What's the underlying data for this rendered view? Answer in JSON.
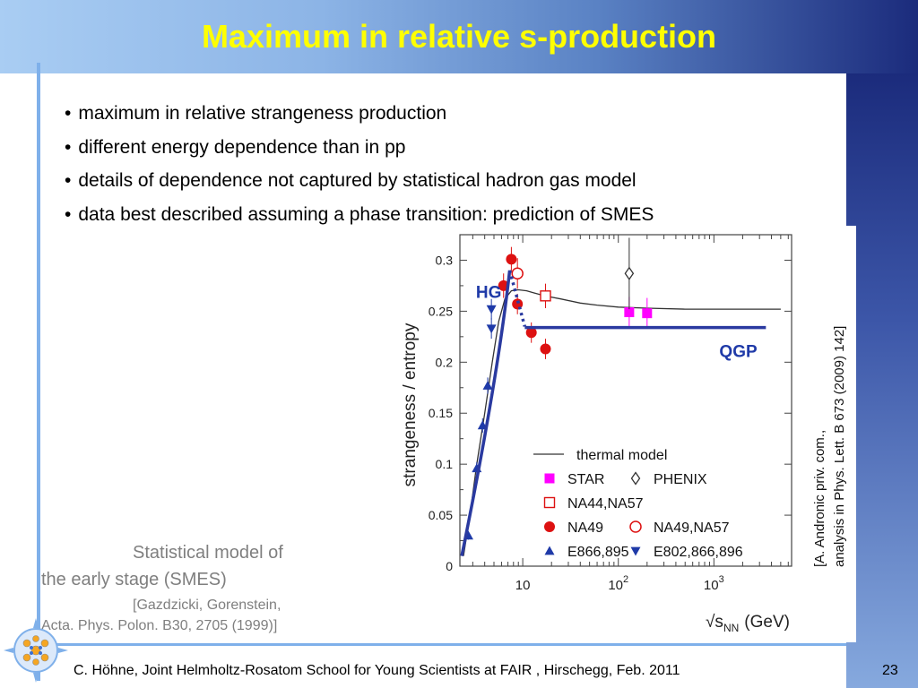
{
  "slide": {
    "title": "Maximum in relative s-production",
    "bullets": [
      "maximum in relative strangeness production",
      "different energy dependence than in pp",
      "details of dependence not captured by statistical hadron gas model",
      "data best described assuming a phase transition: prediction of SMES"
    ],
    "smes_label_line1": "Statistical model of",
    "smes_label_line2": "the early stage (SMES)",
    "smes_ref_line1": "[Gazdzicki, Gorenstein,",
    "smes_ref_line2": "Acta. Phys. Polon. B30, 2705 (1999)]",
    "source_line1": "[A. Andronic priv. com.,",
    "source_line2": "analysis in Phys. Lett. B 673 (2009) 142]",
    "footer": "C. Höhne,   Joint Helmholtz-Rosatom School for Young Scientists at FAIR , Hirschegg, Feb. 2011",
    "page_number": "23"
  },
  "colors": {
    "title": "#ffff00",
    "star": "#ff00ff",
    "na49": "#dd1111",
    "e866": "#1f3aa8",
    "smes_line": "#2a3aa0",
    "annotation_text": "#1f3aa8",
    "thermal": "#333333"
  },
  "chart_data": {
    "type": "scatter",
    "xlabel": "√s",
    "xlabel_sub": "NN",
    "xlabel_unit": "(GeV)",
    "ylabel": "strangeness / entropy",
    "xscale": "log",
    "xlim": [
      2.2,
      6500
    ],
    "ylim": [
      0,
      0.325
    ],
    "x_ticks": [
      {
        "value": 10,
        "label": "10"
      },
      {
        "value": 100,
        "label": "10",
        "exp": "2"
      },
      {
        "value": 1000,
        "label": "10",
        "exp": "3"
      }
    ],
    "y_ticks": [
      {
        "value": 0,
        "label": "0"
      },
      {
        "value": 0.05,
        "label": "0.05"
      },
      {
        "value": 0.1,
        "label": "0.1"
      },
      {
        "value": 0.15,
        "label": "0.15"
      },
      {
        "value": 0.2,
        "label": "0.2"
      },
      {
        "value": 0.25,
        "label": "0.25"
      },
      {
        "value": 0.3,
        "label": "0.3"
      }
    ],
    "thermal_model": {
      "name": "thermal model",
      "x": [
        2.4,
        2.8,
        3.3,
        4,
        4.8,
        5.6,
        6.5,
        7.6,
        9,
        11,
        13,
        17,
        25,
        40,
        60,
        100,
        200,
        500,
        1000,
        2000,
        5000
      ],
      "y": [
        0.01,
        0.05,
        0.1,
        0.15,
        0.2,
        0.24,
        0.262,
        0.27,
        0.271,
        0.27,
        0.268,
        0.265,
        0.262,
        0.258,
        0.256,
        0.254,
        0.253,
        0.252,
        0.252,
        0.252,
        0.252
      ]
    },
    "series": [
      {
        "name": "STAR",
        "marker": "filled-square",
        "color": "#ff00ff",
        "points": [
          {
            "x": 130,
            "y": 0.249,
            "err": 0.015
          },
          {
            "x": 200,
            "y": 0.248,
            "err": 0.015
          }
        ]
      },
      {
        "name": "PHENIX",
        "marker": "open-diamond",
        "color": "#333333",
        "points": [
          {
            "x": 130,
            "y": 0.287,
            "err": 0.035
          }
        ]
      },
      {
        "name": "NA44,NA57",
        "marker": "open-square",
        "color": "#dd1111",
        "points": [
          {
            "x": 17.3,
            "y": 0.265,
            "err": 0.012
          }
        ]
      },
      {
        "name": "NA49",
        "marker": "filled-circle",
        "color": "#dd1111",
        "points": [
          {
            "x": 6.3,
            "y": 0.275,
            "err": 0.012
          },
          {
            "x": 7.6,
            "y": 0.301,
            "err": 0.012
          },
          {
            "x": 8.8,
            "y": 0.257,
            "err": 0.01
          },
          {
            "x": 12.3,
            "y": 0.229,
            "err": 0.01
          },
          {
            "x": 17.3,
            "y": 0.213,
            "err": 0.01
          }
        ]
      },
      {
        "name": "NA49,NA57",
        "marker": "open-circle",
        "color": "#dd1111",
        "points": [
          {
            "x": 8.8,
            "y": 0.287,
            "err": 0.015
          }
        ]
      },
      {
        "name": "E866,895",
        "marker": "filled-triangle-up",
        "color": "#1f3aa8",
        "points": [
          {
            "x": 2.7,
            "y": 0.03,
            "err": 0.004
          },
          {
            "x": 3.3,
            "y": 0.096,
            "err": 0.006
          },
          {
            "x": 3.8,
            "y": 0.138,
            "err": 0.007
          },
          {
            "x": 4.3,
            "y": 0.177,
            "err": 0.008
          }
        ]
      },
      {
        "name": "E802,866,896",
        "marker": "filled-triangle-down",
        "color": "#1f3aa8",
        "points": [
          {
            "x": 4.7,
            "y": 0.233,
            "err": 0.01
          },
          {
            "x": 4.7,
            "y": 0.252,
            "err": 0.01
          }
        ]
      }
    ],
    "smes_curve": {
      "x": [
        2.3,
        5.5,
        7.3
      ],
      "y": [
        0.01,
        0.22,
        0.29
      ]
    },
    "smes_dotted": {
      "x": [
        7.3,
        10.5
      ],
      "y": [
        0.29,
        0.235
      ]
    },
    "smes_plateau": {
      "x": [
        10.5,
        3500
      ],
      "y": [
        0.234,
        0.234
      ]
    },
    "annotations": [
      {
        "text": "HG",
        "x": 4.4,
        "y": 0.263
      },
      {
        "text": "QGP",
        "x": 1800,
        "y": 0.205
      }
    ],
    "legend_position": "bottom-right"
  }
}
